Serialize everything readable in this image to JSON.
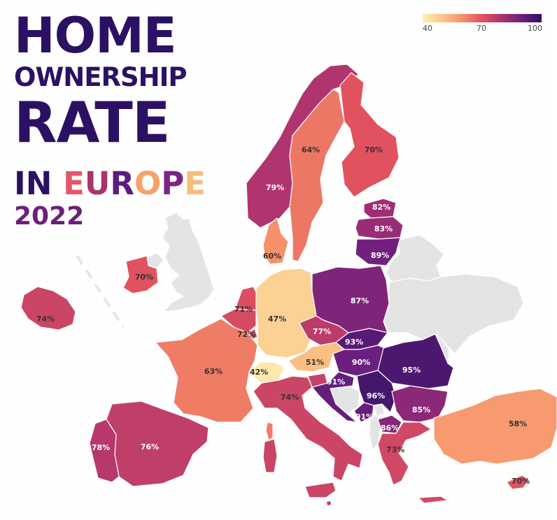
{
  "title": {
    "line1": "HOME",
    "line2": "OWNERSHIP",
    "line3": "RATE",
    "line4": {
      "prefix": "IN ",
      "letters": [
        {
          "ch": "E",
          "color": "#e6556b"
        },
        {
          "ch": "U",
          "color": "#a9336f"
        },
        {
          "ch": "R",
          "color": "#5a1d7d"
        },
        {
          "ch": "O",
          "color": "#f9a166"
        },
        {
          "ch": "P",
          "color": "#7d2482"
        },
        {
          "ch": "E",
          "color": "#f7bd7c"
        }
      ]
    },
    "year": "2022"
  },
  "legend": {
    "ticks": [
      {
        "label": "40",
        "value": 40
      },
      {
        "label": "70",
        "value": 70
      },
      {
        "label": "100",
        "value": 100
      }
    ],
    "colors": [
      "#fcf1b4",
      "#fbc486",
      "#f6906a",
      "#e0525e",
      "#ab3271",
      "#6b1f7e",
      "#2c115f"
    ],
    "min": 40,
    "max": 100
  },
  "nodata_color": "#e4e4e4",
  "regions": [
    {
      "id": "norway",
      "label": "79%",
      "value": 79
    },
    {
      "id": "sweden",
      "label": "64%",
      "value": 64
    },
    {
      "id": "finland",
      "label": "70%",
      "value": 70
    },
    {
      "id": "estonia",
      "label": "82%",
      "value": 82
    },
    {
      "id": "latvia",
      "label": "83%",
      "value": 83
    },
    {
      "id": "lithuania",
      "label": "89%",
      "value": 89
    },
    {
      "id": "denmark",
      "label": "60%",
      "value": 60
    },
    {
      "id": "ireland",
      "label": "70%",
      "value": 70
    },
    {
      "id": "iceland",
      "label": "74%",
      "value": 74
    },
    {
      "id": "netherlands",
      "label": "71%",
      "value": 71
    },
    {
      "id": "belgium",
      "label": "72%",
      "value": 72
    },
    {
      "id": "luxembourg",
      "label": "",
      "value": 72
    },
    {
      "id": "germany",
      "label": "47%",
      "value": 47
    },
    {
      "id": "poland",
      "label": "87%",
      "value": 87
    },
    {
      "id": "czechia",
      "label": "77%",
      "value": 77
    },
    {
      "id": "slovakia",
      "label": "93%",
      "value": 93
    },
    {
      "id": "hungary",
      "label": "90%",
      "value": 90
    },
    {
      "id": "romania",
      "label": "95%",
      "value": 95
    },
    {
      "id": "austria",
      "label": "51%",
      "value": 51
    },
    {
      "id": "switzerland",
      "label": "42%",
      "value": 42
    },
    {
      "id": "france",
      "label": "63%",
      "value": 63
    },
    {
      "id": "italy",
      "label": "74%",
      "value": 74
    },
    {
      "id": "slovenia",
      "label": "",
      "value": 75
    },
    {
      "id": "croatia",
      "label": "91%",
      "value": 91
    },
    {
      "id": "serbia",
      "label": "96%",
      "value": 96
    },
    {
      "id": "montenegro",
      "label": "91%",
      "value": 91
    },
    {
      "id": "north_macedonia",
      "label": "86%",
      "value": 86
    },
    {
      "id": "bulgaria",
      "label": "85%",
      "value": 85
    },
    {
      "id": "greece",
      "label": "73%",
      "value": 73
    },
    {
      "id": "turkey",
      "label": "58%",
      "value": 58
    },
    {
      "id": "cyprus",
      "label": "70%",
      "value": 70
    },
    {
      "id": "spain",
      "label": "76%",
      "value": 76
    },
    {
      "id": "portugal",
      "label": "78%",
      "value": 78
    },
    {
      "id": "malta",
      "label": "",
      "value": 77
    }
  ]
}
